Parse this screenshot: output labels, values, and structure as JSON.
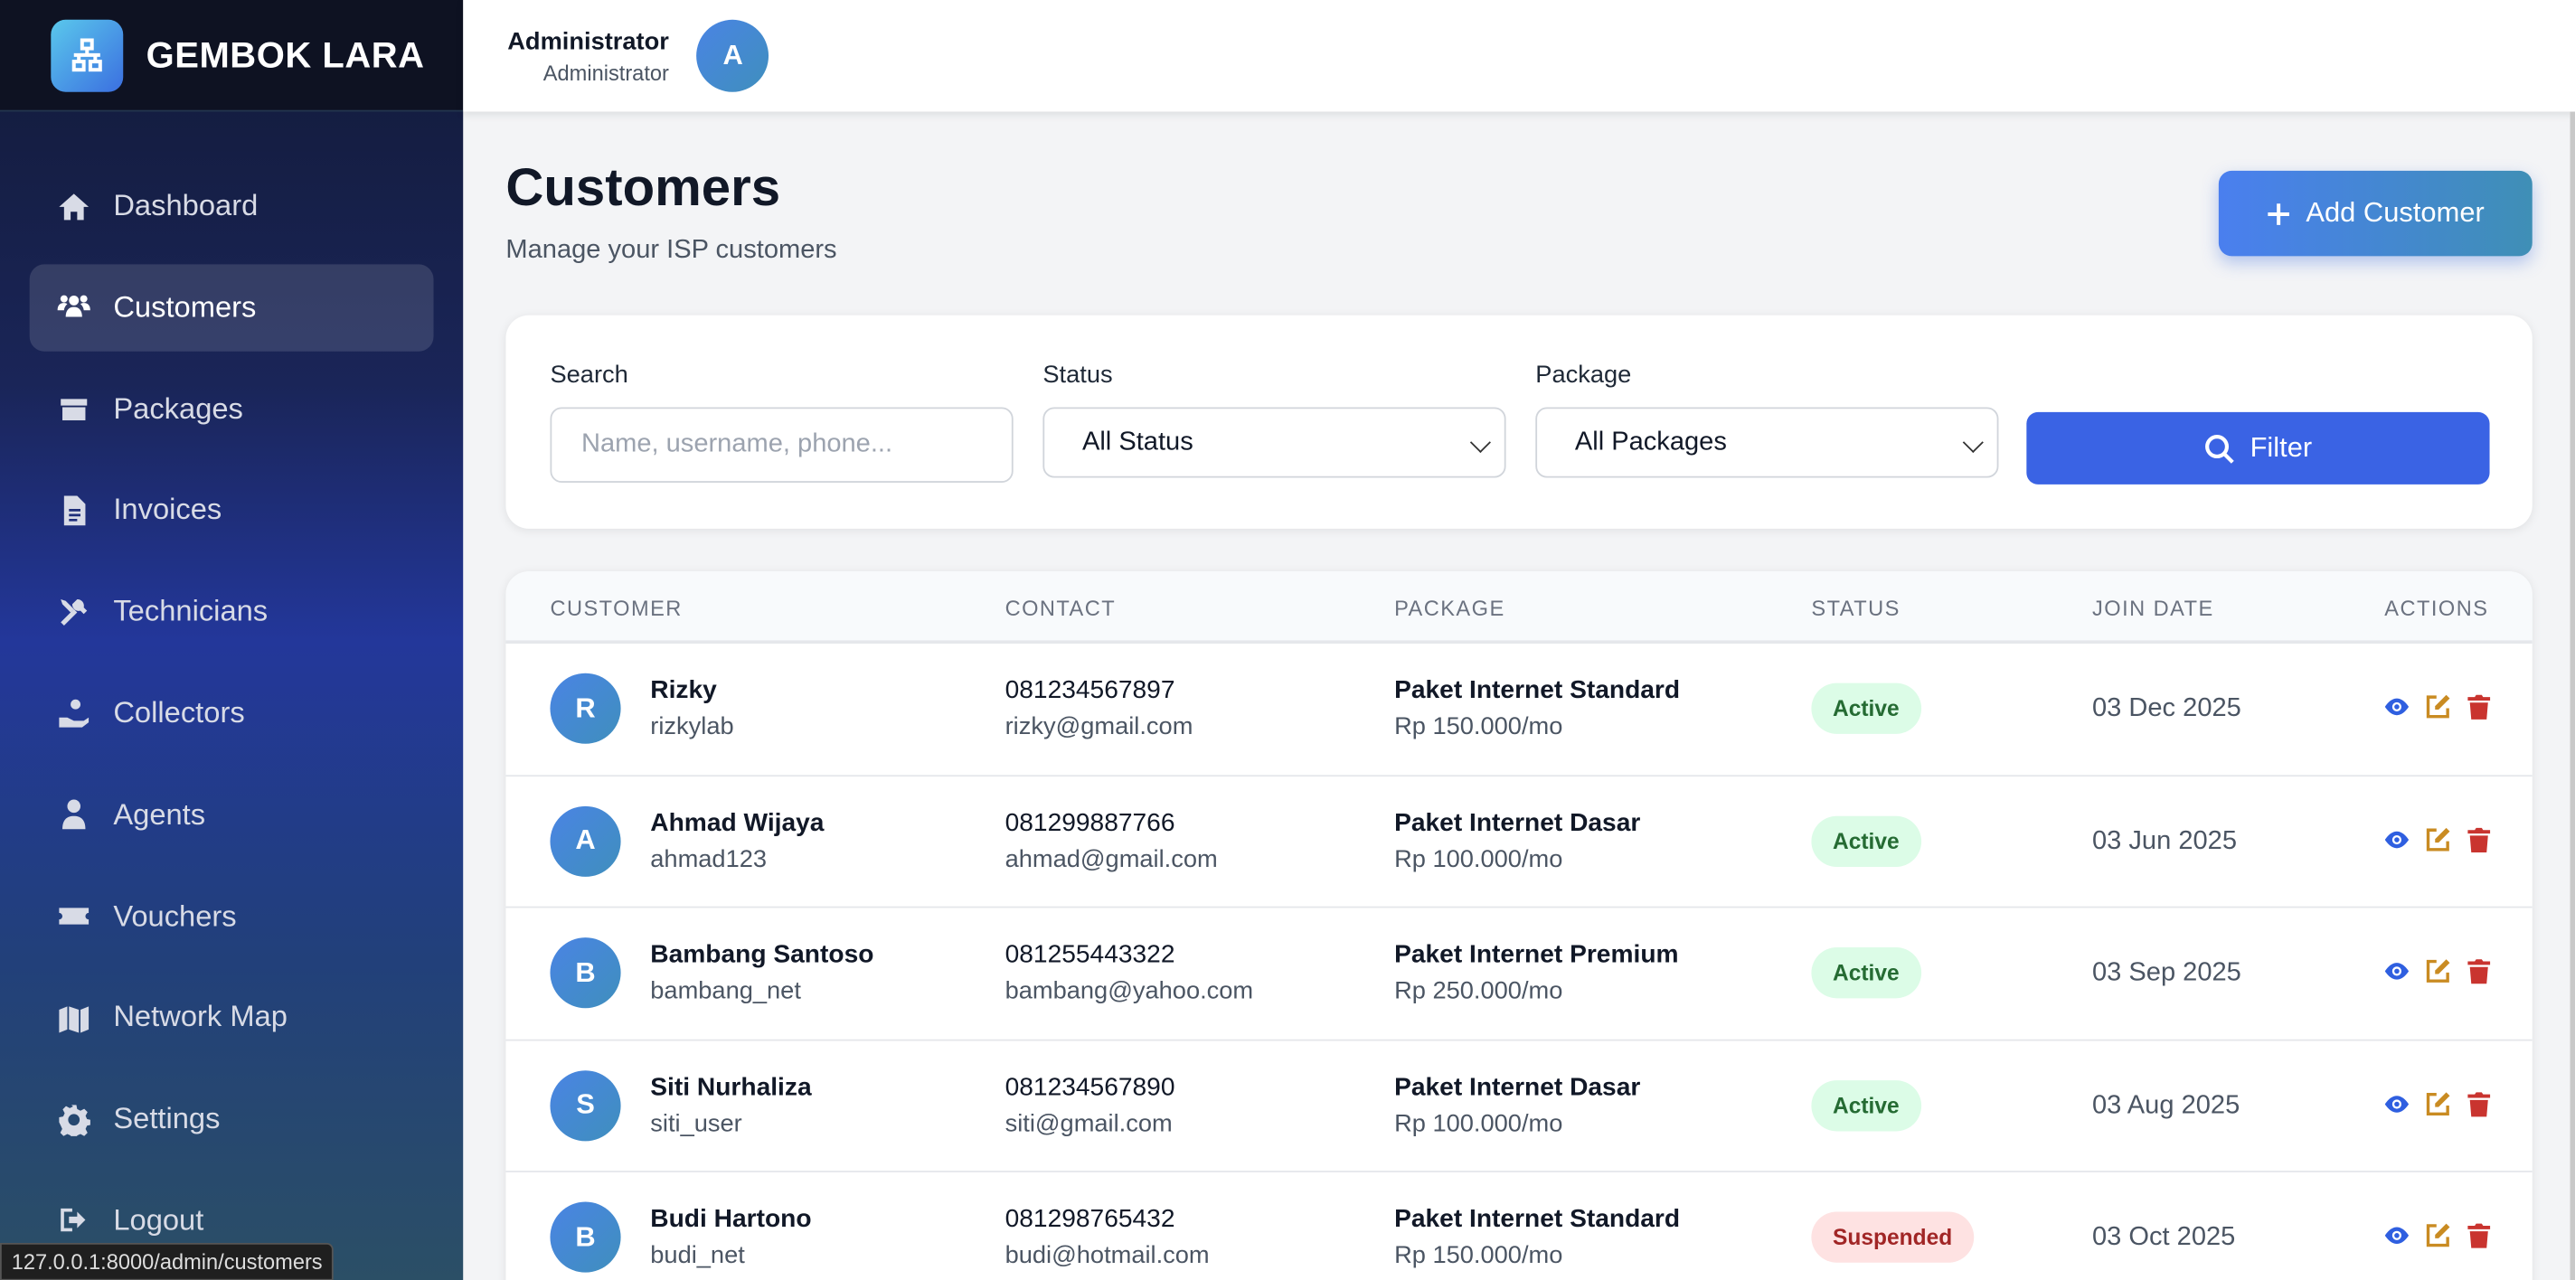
{
  "brand": {
    "name": "GEMBOK LARA"
  },
  "sidebar": {
    "items": [
      {
        "label": "Dashboard",
        "icon": "home-icon"
      },
      {
        "label": "Customers",
        "icon": "users-icon",
        "active": true
      },
      {
        "label": "Packages",
        "icon": "box-icon"
      },
      {
        "label": "Invoices",
        "icon": "file-invoice-icon"
      },
      {
        "label": "Technicians",
        "icon": "tools-icon"
      },
      {
        "label": "Collectors",
        "icon": "hand-money-icon"
      },
      {
        "label": "Agents",
        "icon": "user-tie-icon"
      },
      {
        "label": "Vouchers",
        "icon": "ticket-icon"
      },
      {
        "label": "Network Map",
        "icon": "map-icon"
      },
      {
        "label": "Settings",
        "icon": "gear-icon"
      },
      {
        "label": "Logout",
        "icon": "logout-icon"
      }
    ]
  },
  "header": {
    "user_name": "Administrator",
    "user_role": "Administrator",
    "avatar": "A"
  },
  "page": {
    "title": "Customers",
    "subtitle": "Manage your ISP customers",
    "add_label": "Add Customer"
  },
  "filters": {
    "search_label": "Search",
    "search_placeholder": "Name, username, phone...",
    "status_label": "Status",
    "status_value": "All Status",
    "package_label": "Package",
    "package_value": "All Packages",
    "filter_label": "Filter"
  },
  "table": {
    "headers": [
      "CUSTOMER",
      "CONTACT",
      "PACKAGE",
      "STATUS",
      "JOIN DATE",
      "ACTIONS"
    ],
    "rows": [
      {
        "initial": "R",
        "name": "Rizky",
        "username": "rizkylab",
        "phone": "081234567897",
        "email": "rizky@gmail.com",
        "package": "Paket Internet Standard",
        "price": "Rp 150.000/mo",
        "status": "Active",
        "join": "03 Dec 2025"
      },
      {
        "initial": "A",
        "name": "Ahmad Wijaya",
        "username": "ahmad123",
        "phone": "081299887766",
        "email": "ahmad@gmail.com",
        "package": "Paket Internet Dasar",
        "price": "Rp 100.000/mo",
        "status": "Active",
        "join": "03 Jun 2025"
      },
      {
        "initial": "B",
        "name": "Bambang Santoso",
        "username": "bambang_net",
        "phone": "081255443322",
        "email": "bambang@yahoo.com",
        "package": "Paket Internet Premium",
        "price": "Rp 250.000/mo",
        "status": "Active",
        "join": "03 Sep 2025"
      },
      {
        "initial": "S",
        "name": "Siti Nurhaliza",
        "username": "siti_user",
        "phone": "081234567890",
        "email": "siti@gmail.com",
        "package": "Paket Internet Dasar",
        "price": "Rp 100.000/mo",
        "status": "Active",
        "join": "03 Aug 2025"
      },
      {
        "initial": "B",
        "name": "Budi Hartono",
        "username": "budi_net",
        "phone": "081298765432",
        "email": "budi@hotmail.com",
        "package": "Paket Internet Standard",
        "price": "Rp 150.000/mo",
        "status": "Suspended",
        "join": "03 Oct 2025"
      }
    ]
  },
  "status_url": "127.0.0.1:8000/admin/customers",
  "colors": {
    "primary": "#3a63e4",
    "active_bg": "#dcfce7",
    "suspended_bg": "#fee2e2",
    "view": "#2f5fe0",
    "edit": "#c98b22",
    "delete": "#c9342f"
  }
}
